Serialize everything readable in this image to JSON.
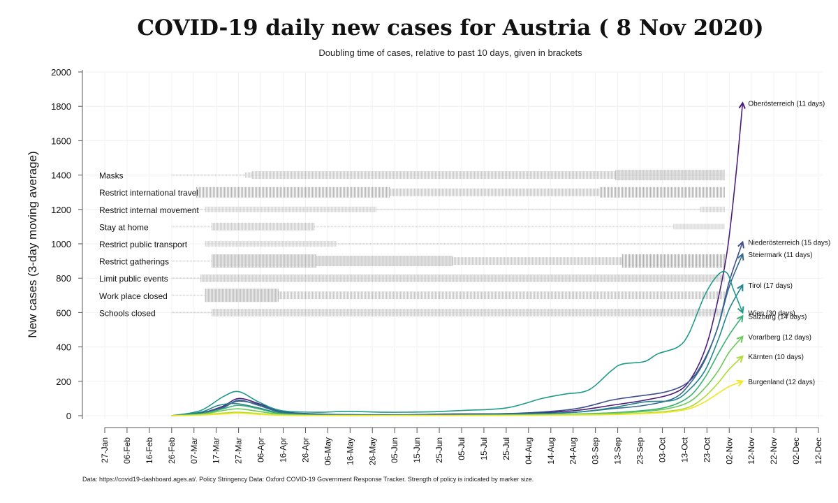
{
  "title": "COVID-19 daily new cases for Austria ( 8 Nov 2020)",
  "subtitle": "Doubling time of cases, relative to past 10 days, given in brackets",
  "footer": "Data: https://covid19-dashboard.ages.at/. Policy Stringency Data: Oxford COVID-19 Government Response Tracker. Strength of policy is indicated by marker size.",
  "chart_data": {
    "type": "line",
    "ylabel": "New cases (3-day moving average)",
    "xlabel": "",
    "ylim": [
      0,
      2000
    ],
    "yticks": [
      0,
      200,
      400,
      600,
      800,
      1000,
      1200,
      1400,
      1600,
      1800,
      2000
    ],
    "xlim": [
      "2020-01-27",
      "2020-12-12"
    ],
    "xtick_labels": [
      "27-Jan",
      "06-Feb",
      "16-Feb",
      "26-Feb",
      "07-Mar",
      "17-Mar",
      "27-Mar",
      "06-Apr",
      "16-Apr",
      "26-Apr",
      "06-May",
      "16-May",
      "26-May",
      "05-Jun",
      "15-Jun",
      "25-Jun",
      "05-Jul",
      "15-Jul",
      "25-Jul",
      "04-Aug",
      "14-Aug",
      "24-Aug",
      "03-Sep",
      "13-Sep",
      "23-Sep",
      "03-Oct",
      "13-Oct",
      "23-Oct",
      "02-Nov",
      "12-Nov",
      "22-Nov",
      "02-Dec",
      "12-Dec"
    ],
    "grid": true,
    "series": [
      {
        "name": "Oberösterreich",
        "label": "Oberösterreich  (11 days)",
        "color": "#4b1d7a",
        "x": [
          "2020-02-26",
          "2020-03-10",
          "2020-03-20",
          "2020-03-27",
          "2020-04-05",
          "2020-04-15",
          "2020-05-01",
          "2020-06-01",
          "2020-07-01",
          "2020-08-01",
          "2020-08-25",
          "2020-09-10",
          "2020-09-25",
          "2020-10-08",
          "2020-10-15",
          "2020-10-22",
          "2020-10-27",
          "2020-11-01",
          "2020-11-05",
          "2020-11-08"
        ],
        "values": [
          0,
          15,
          55,
          100,
          70,
          25,
          8,
          4,
          10,
          12,
          30,
          60,
          90,
          130,
          200,
          380,
          620,
          950,
          1400,
          1820
        ]
      },
      {
        "name": "Niederösterreich",
        "label": "Niederösterreich  (15 days)",
        "color": "#3f4f8c",
        "x": [
          "2020-02-26",
          "2020-03-10",
          "2020-03-20",
          "2020-03-27",
          "2020-04-05",
          "2020-04-15",
          "2020-05-01",
          "2020-06-01",
          "2020-07-01",
          "2020-08-01",
          "2020-08-25",
          "2020-09-10",
          "2020-09-20",
          "2020-10-05",
          "2020-10-15",
          "2020-10-22",
          "2020-10-28",
          "2020-11-02",
          "2020-11-08"
        ],
        "values": [
          0,
          15,
          50,
          85,
          65,
          25,
          10,
          5,
          8,
          15,
          40,
          90,
          110,
          140,
          200,
          330,
          520,
          780,
          1010
        ]
      },
      {
        "name": "Steiermark",
        "label": "Steiermark  (11 days)",
        "color": "#336a8f",
        "x": [
          "2020-02-26",
          "2020-03-10",
          "2020-03-20",
          "2020-03-27",
          "2020-04-05",
          "2020-04-15",
          "2020-05-01",
          "2020-06-01",
          "2020-07-01",
          "2020-08-01",
          "2020-08-25",
          "2020-09-10",
          "2020-09-25",
          "2020-10-08",
          "2020-10-15",
          "2020-10-22",
          "2020-10-28",
          "2020-11-02",
          "2020-11-08"
        ],
        "values": [
          0,
          12,
          45,
          90,
          60,
          20,
          8,
          5,
          6,
          10,
          20,
          40,
          60,
          100,
          180,
          320,
          520,
          750,
          940
        ]
      },
      {
        "name": "Tirol",
        "label": "Tirol  (17 days)",
        "color": "#22868c",
        "x": [
          "2020-02-26",
          "2020-03-10",
          "2020-03-18",
          "2020-03-26",
          "2020-04-05",
          "2020-04-15",
          "2020-05-01",
          "2020-06-01",
          "2020-07-01",
          "2020-08-01",
          "2020-08-25",
          "2020-09-10",
          "2020-09-25",
          "2020-10-08",
          "2020-10-15",
          "2020-10-22",
          "2020-10-28",
          "2020-11-02",
          "2020-11-08"
        ],
        "values": [
          0,
          20,
          60,
          70,
          45,
          15,
          5,
          3,
          5,
          10,
          20,
          45,
          80,
          90,
          150,
          260,
          440,
          620,
          760
        ]
      },
      {
        "name": "Wien",
        "label": "Wien  (30 days)",
        "color": "#1f9a89",
        "x": [
          "2020-02-26",
          "2020-03-10",
          "2020-03-20",
          "2020-03-27",
          "2020-04-05",
          "2020-04-15",
          "2020-05-01",
          "2020-05-15",
          "2020-06-01",
          "2020-06-20",
          "2020-07-05",
          "2020-07-25",
          "2020-08-10",
          "2020-08-20",
          "2020-08-31",
          "2020-09-10",
          "2020-09-15",
          "2020-09-25",
          "2020-10-01",
          "2020-10-10",
          "2020-10-15",
          "2020-10-22",
          "2020-10-28",
          "2020-11-01",
          "2020-11-04",
          "2020-11-08"
        ],
        "values": [
          0,
          30,
          110,
          140,
          80,
          30,
          20,
          25,
          20,
          22,
          30,
          45,
          100,
          125,
          150,
          260,
          300,
          315,
          360,
          400,
          480,
          700,
          820,
          830,
          730,
          600
        ]
      },
      {
        "name": "Salzburg",
        "label": "Salzburg  (14 days)",
        "color": "#3bb176",
        "x": [
          "2020-02-26",
          "2020-03-10",
          "2020-03-20",
          "2020-03-27",
          "2020-04-05",
          "2020-04-15",
          "2020-05-01",
          "2020-06-01",
          "2020-07-01",
          "2020-08-01",
          "2020-09-01",
          "2020-09-20",
          "2020-10-05",
          "2020-10-15",
          "2020-10-22",
          "2020-10-28",
          "2020-11-02",
          "2020-11-08"
        ],
        "values": [
          0,
          10,
          40,
          60,
          40,
          12,
          4,
          2,
          3,
          5,
          12,
          25,
          50,
          110,
          220,
          360,
          470,
          580
        ]
      },
      {
        "name": "Vorarlberg",
        "label": "Vorarlberg  (12 days)",
        "color": "#6cc85a",
        "x": [
          "2020-02-26",
          "2020-03-10",
          "2020-03-20",
          "2020-03-27",
          "2020-04-05",
          "2020-04-15",
          "2020-05-01",
          "2020-06-01",
          "2020-07-01",
          "2020-08-01",
          "2020-09-01",
          "2020-09-20",
          "2020-10-05",
          "2020-10-15",
          "2020-10-22",
          "2020-10-28",
          "2020-11-02",
          "2020-11-08"
        ],
        "values": [
          0,
          8,
          30,
          40,
          25,
          8,
          2,
          1,
          2,
          4,
          10,
          20,
          40,
          80,
          160,
          260,
          370,
          460
        ]
      },
      {
        "name": "Kärnten",
        "label": "Kärnten  (10 days)",
        "color": "#aedb34",
        "x": [
          "2020-02-26",
          "2020-03-10",
          "2020-03-20",
          "2020-03-27",
          "2020-04-05",
          "2020-04-15",
          "2020-05-01",
          "2020-06-01",
          "2020-07-01",
          "2020-08-01",
          "2020-09-01",
          "2020-09-20",
          "2020-10-05",
          "2020-10-15",
          "2020-10-22",
          "2020-10-28",
          "2020-11-02",
          "2020-11-08"
        ],
        "values": [
          0,
          5,
          15,
          20,
          12,
          4,
          1,
          1,
          2,
          3,
          6,
          12,
          25,
          50,
          110,
          190,
          270,
          345
        ]
      },
      {
        "name": "Burgenland",
        "label": "Burgenland  (12 days)",
        "color": "#f0e61c",
        "x": [
          "2020-02-26",
          "2020-03-10",
          "2020-03-20",
          "2020-03-27",
          "2020-04-05",
          "2020-04-15",
          "2020-05-01",
          "2020-06-01",
          "2020-07-01",
          "2020-08-01",
          "2020-09-01",
          "2020-09-20",
          "2020-10-05",
          "2020-10-15",
          "2020-10-22",
          "2020-10-28",
          "2020-11-02",
          "2020-11-08"
        ],
        "values": [
          0,
          4,
          10,
          15,
          8,
          3,
          1,
          1,
          1,
          2,
          5,
          10,
          20,
          40,
          80,
          130,
          170,
          200
        ]
      }
    ],
    "policies": [
      {
        "name": "Masks",
        "y": 1400,
        "segments": [
          {
            "from": "2020-02-26",
            "to": "2020-03-30",
            "strength": 1
          },
          {
            "from": "2020-03-30",
            "to": "2020-04-02",
            "strength": 2
          },
          {
            "from": "2020-04-02",
            "to": "2020-09-12",
            "strength": 3
          },
          {
            "from": "2020-09-12",
            "to": "2020-10-31",
            "strength": 4
          }
        ]
      },
      {
        "name": "Restrict international travel",
        "y": 1300,
        "segments": [
          {
            "from": "2020-03-08",
            "to": "2020-06-03",
            "strength": 4
          },
          {
            "from": "2020-06-03",
            "to": "2020-09-05",
            "strength": 3
          },
          {
            "from": "2020-09-05",
            "to": "2020-10-31",
            "strength": 4
          }
        ]
      },
      {
        "name": "Restrict internal movement",
        "y": 1200,
        "segments": [
          {
            "from": "2020-02-26",
            "to": "2020-03-12",
            "strength": 1
          },
          {
            "from": "2020-03-12",
            "to": "2020-05-28",
            "strength": 2
          },
          {
            "from": "2020-05-28",
            "to": "2020-10-20",
            "strength": 1
          },
          {
            "from": "2020-10-20",
            "to": "2020-10-31",
            "strength": 2
          }
        ]
      },
      {
        "name": "Stay at home",
        "y": 1100,
        "segments": [
          {
            "from": "2020-02-26",
            "to": "2020-03-15",
            "strength": 1
          },
          {
            "from": "2020-03-15",
            "to": "2020-04-30",
            "strength": 3
          },
          {
            "from": "2020-04-30",
            "to": "2020-10-08",
            "strength": 1
          },
          {
            "from": "2020-10-08",
            "to": "2020-10-31",
            "strength": 2
          }
        ]
      },
      {
        "name": "Restrict public transport",
        "y": 1000,
        "segments": [
          {
            "from": "2020-03-12",
            "to": "2020-05-10",
            "strength": 2
          },
          {
            "from": "2020-05-10",
            "to": "2020-10-31",
            "strength": 1
          }
        ]
      },
      {
        "name": "Restrict gatherings",
        "y": 900,
        "segments": [
          {
            "from": "2020-02-26",
            "to": "2020-03-15",
            "strength": 1
          },
          {
            "from": "2020-03-15",
            "to": "2020-05-01",
            "strength": 5
          },
          {
            "from": "2020-05-01",
            "to": "2020-07-01",
            "strength": 4
          },
          {
            "from": "2020-07-01",
            "to": "2020-09-15",
            "strength": 3
          },
          {
            "from": "2020-09-15",
            "to": "2020-10-31",
            "strength": 5
          }
        ]
      },
      {
        "name": "Limit public events",
        "y": 800,
        "segments": [
          {
            "from": "2020-02-26",
            "to": "2020-03-10",
            "strength": 1
          },
          {
            "from": "2020-03-10",
            "to": "2020-10-31",
            "strength": 3
          }
        ]
      },
      {
        "name": "Work place closed",
        "y": 700,
        "segments": [
          {
            "from": "2020-02-26",
            "to": "2020-03-12",
            "strength": 1
          },
          {
            "from": "2020-03-12",
            "to": "2020-04-14",
            "strength": 5
          },
          {
            "from": "2020-04-14",
            "to": "2020-10-31",
            "strength": 3
          }
        ]
      },
      {
        "name": "Schools closed",
        "y": 600,
        "segments": [
          {
            "from": "2020-02-26",
            "to": "2020-03-15",
            "strength": 1
          },
          {
            "from": "2020-03-15",
            "to": "2020-10-31",
            "strength": 3
          }
        ]
      }
    ]
  }
}
